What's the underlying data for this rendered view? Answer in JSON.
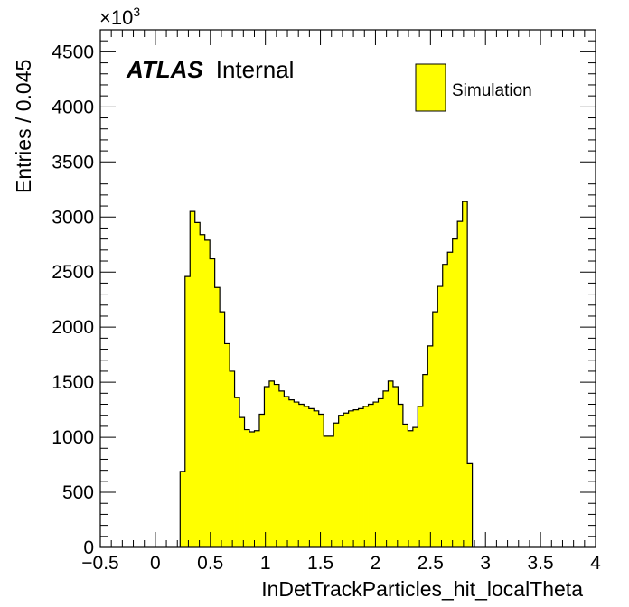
{
  "chart_data": {
    "type": "histogram",
    "xlabel": "InDetTrackParticles_hit_localTheta",
    "ylabel": "Entries / 0.045",
    "xlim": [
      -0.5,
      4
    ],
    "ylim": [
      0,
      4700
    ],
    "y_multiplier": "×10",
    "y_multiplier_exp": "3",
    "x_ticks": [
      -0.5,
      0,
      0.5,
      1,
      1.5,
      2,
      2.5,
      3,
      3.5,
      4
    ],
    "x_tick_labels": [
      "−0.5",
      "0",
      "0.5",
      "1",
      "1.5",
      "2",
      "2.5",
      "3",
      "3.5",
      "4"
    ],
    "y_ticks": [
      0,
      500,
      1000,
      1500,
      2000,
      2500,
      3000,
      3500,
      4000,
      4500
    ],
    "y_tick_labels": [
      "0",
      "500",
      "1000",
      "1500",
      "2000",
      "2500",
      "3000",
      "3500",
      "4000",
      "4500"
    ],
    "bin_width": 0.045,
    "bin_start": 0.225,
    "values": [
      690,
      2460,
      3050,
      2950,
      2840,
      2790,
      2620,
      2360,
      2140,
      1850,
      1600,
      1360,
      1180,
      1070,
      1050,
      1060,
      1210,
      1460,
      1510,
      1480,
      1420,
      1370,
      1340,
      1320,
      1300,
      1280,
      1260,
      1240,
      1210,
      1010,
      1010,
      1130,
      1200,
      1220,
      1240,
      1250,
      1260,
      1280,
      1300,
      1320,
      1350,
      1420,
      1510,
      1460,
      1300,
      1120,
      1060,
      1090,
      1280,
      1570,
      1830,
      2140,
      2370,
      2570,
      2680,
      2800,
      2960,
      3140,
      760
    ],
    "legend": {
      "entry": "Simulation",
      "color": "#ffff00",
      "position": "top-right"
    },
    "annotation": {
      "bold": "ATLAS",
      "normal": "Internal"
    },
    "fill_color": "#ffff00",
    "grid": false
  }
}
